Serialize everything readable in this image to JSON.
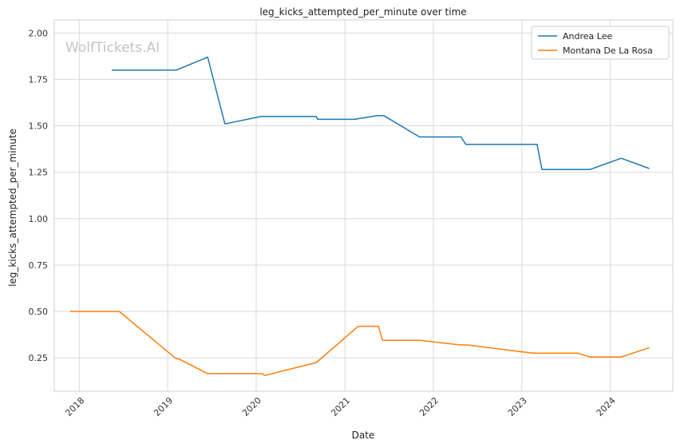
{
  "watermark": "WolfTickets.AI",
  "chart_data": {
    "type": "line",
    "title": "leg_kicks_attempted_per_minute over time",
    "xlabel": "Date",
    "ylabel": "leg_kicks_attempted_per_minute",
    "xlim": [
      "2017-09-20",
      "2024-09-15"
    ],
    "ylim": [
      0.07,
      2.07
    ],
    "x_ticks": [
      "2018",
      "2019",
      "2020",
      "2021",
      "2022",
      "2023",
      "2024"
    ],
    "y_ticks": [
      "0.25",
      "0.50",
      "0.75",
      "1.00",
      "1.25",
      "1.50",
      "1.75",
      "2.00"
    ],
    "grid": true,
    "legend_position": "top-right",
    "series": [
      {
        "name": "Andrea Lee",
        "color": "#1f77b4",
        "points": [
          [
            "2018-05-15",
            1.8
          ],
          [
            "2019-02-05",
            1.8
          ],
          [
            "2019-06-15",
            1.87
          ],
          [
            "2019-08-25",
            1.51
          ],
          [
            "2020-01-20",
            1.55
          ],
          [
            "2020-09-05",
            1.55
          ],
          [
            "2020-09-10",
            1.535
          ],
          [
            "2021-02-10",
            1.535
          ],
          [
            "2021-05-15",
            1.555
          ],
          [
            "2021-06-10",
            1.555
          ],
          [
            "2021-11-05",
            1.44
          ],
          [
            "2022-04-25",
            1.44
          ],
          [
            "2022-05-15",
            1.4
          ],
          [
            "2023-03-05",
            1.4
          ],
          [
            "2023-03-25",
            1.265
          ],
          [
            "2023-10-10",
            1.265
          ],
          [
            "2024-02-15",
            1.325
          ],
          [
            "2024-06-10",
            1.27
          ]
        ]
      },
      {
        "name": "Montana De La Rosa",
        "color": "#ff7f0e",
        "points": [
          [
            "2017-11-25",
            0.5
          ],
          [
            "2018-06-15",
            0.5
          ],
          [
            "2019-02-05",
            0.245
          ],
          [
            "2019-02-15",
            0.245
          ],
          [
            "2019-06-15",
            0.165
          ],
          [
            "2020-01-25",
            0.165
          ],
          [
            "2020-02-05",
            0.155
          ],
          [
            "2020-09-05",
            0.225
          ],
          [
            "2021-02-25",
            0.42
          ],
          [
            "2021-05-20",
            0.42
          ],
          [
            "2021-06-05",
            0.345
          ],
          [
            "2021-11-05",
            0.345
          ],
          [
            "2022-04-20",
            0.32
          ],
          [
            "2022-05-20",
            0.32
          ],
          [
            "2023-02-15",
            0.275
          ],
          [
            "2023-08-20",
            0.275
          ],
          [
            "2023-10-10",
            0.255
          ],
          [
            "2024-02-15",
            0.255
          ],
          [
            "2024-06-10",
            0.305
          ]
        ]
      }
    ]
  }
}
